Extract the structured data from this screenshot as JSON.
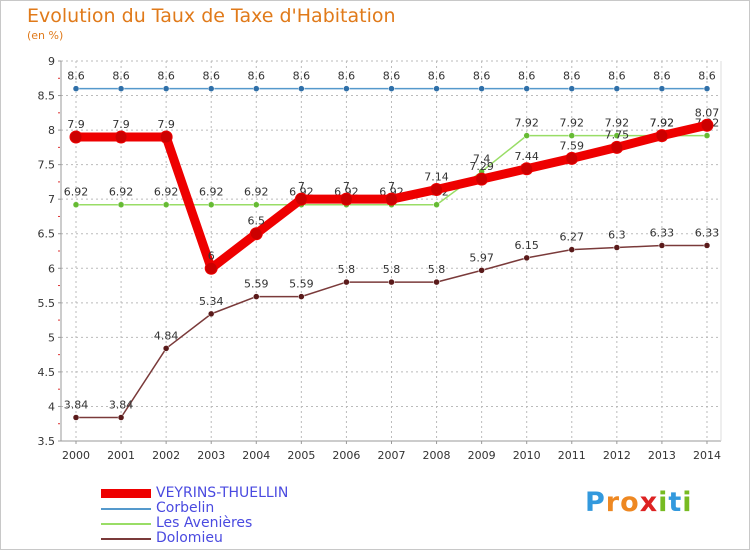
{
  "header": {
    "title": "Evolution du Taux de Taxe d'Habitation",
    "subtitle": "(en %)"
  },
  "chart_data": {
    "type": "line",
    "x": [
      "2000",
      "2001",
      "2002",
      "2003",
      "2004",
      "2005",
      "2006",
      "2007",
      "2008",
      "2009",
      "2010",
      "2011",
      "2012",
      "2013",
      "2014"
    ],
    "ylim": [
      3.5,
      9
    ],
    "yticks": [
      "3.5",
      "4",
      "4.5",
      "5",
      "5.5",
      "6",
      "6.5",
      "7",
      "7.5",
      "8",
      "8.5",
      "9"
    ],
    "grid": true,
    "series": [
      {
        "name": "Corbelin",
        "color": "#5599cc",
        "marker": "#2f6fa8",
        "values": [
          8.6,
          8.6,
          8.6,
          8.6,
          8.6,
          8.6,
          8.6,
          8.6,
          8.6,
          8.6,
          8.6,
          8.6,
          8.6,
          8.6,
          8.6
        ],
        "labels": [
          "8.6",
          "8.6",
          "8.6",
          "8.6",
          "8.6",
          "8.6",
          "8.6",
          "8.6",
          "8.6",
          "8.6",
          "8.6",
          "8.6",
          "8.6",
          "8.6",
          "8.6"
        ]
      },
      {
        "name": "Les Avenières",
        "color": "#99dd66",
        "marker": "#66bb33",
        "values": [
          6.92,
          6.92,
          6.92,
          6.92,
          6.92,
          6.92,
          6.92,
          6.92,
          6.92,
          7.4,
          7.92,
          7.92,
          7.92,
          7.92,
          7.92
        ],
        "labels": [
          "6.92",
          "6.92",
          "6.92",
          "6.92",
          "6.92",
          "6.92",
          "6.92",
          "6.92",
          "6.92",
          "7.4",
          "7.92",
          "7.92",
          "7.92",
          "7.92",
          "7.92"
        ]
      },
      {
        "name": "Dolomieu",
        "color": "#7a3a3a",
        "marker": "#5a1a1a",
        "values": [
          3.84,
          3.84,
          4.84,
          5.34,
          5.59,
          5.59,
          5.8,
          5.8,
          5.8,
          5.97,
          6.15,
          6.27,
          6.3,
          6.33,
          6.33
        ],
        "labels": [
          "3.84",
          "3.84",
          "4.84",
          "5.34",
          "5.59",
          "5.59",
          "5.8",
          "5.8",
          "5.8",
          "5.97",
          "6.15",
          "6.27",
          "6.3",
          "6.33",
          "6.33"
        ]
      },
      {
        "name": "VEYRINS-THUELLIN",
        "color": "#ee0000",
        "marker": "#cc0000",
        "values": [
          7.9,
          7.9,
          7.9,
          6,
          6.5,
          7,
          7,
          7,
          7.14,
          7.29,
          7.44,
          7.59,
          7.75,
          7.92,
          8.07
        ],
        "labels": [
          "7.9",
          "7.9",
          "7.9",
          "6",
          "6.5",
          "7",
          "7",
          "7",
          "7.14",
          "7.29",
          "7.44",
          "7.59",
          "7.75",
          "7.92",
          "8.07"
        ]
      }
    ]
  },
  "legend": {
    "items": [
      {
        "label": "VEYRINS-THUELLIN",
        "color": "#ee0000"
      },
      {
        "label": "Corbelin",
        "color": "#5599cc"
      },
      {
        "label": "Les Avenières",
        "color": "#99dd66"
      },
      {
        "label": "Dolomieu",
        "color": "#7a3a3a"
      }
    ]
  },
  "logo": {
    "letters": [
      "P",
      "r",
      "o",
      "x",
      "i",
      "t",
      "i"
    ],
    "colors": [
      "#3399dd",
      "#ee8822",
      "#ee8822",
      "#dd2222",
      "#77bb22",
      "#3399dd",
      "#77bb22"
    ]
  }
}
